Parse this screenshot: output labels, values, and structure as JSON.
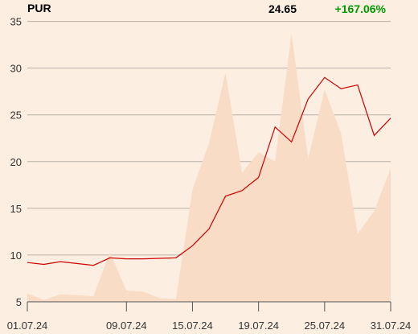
{
  "header": {
    "symbol": "PUR",
    "last_price": "24.65",
    "change_pct": "+167.06%"
  },
  "colors": {
    "background": "#fcefe2",
    "line": "#cc0000",
    "volume_area": "#f8dcc6",
    "grid": "#b8b0a8",
    "change_positive": "#009900"
  },
  "chart_data": {
    "type": "line",
    "title": "",
    "xlabel": "",
    "ylabel": "",
    "x_tick_labels": [
      "01.07.24",
      "09.07.24",
      "15.07.24",
      "19.07.24",
      "25.07.24",
      "31.07.24"
    ],
    "y_ticks": [
      5,
      10,
      15,
      20,
      25,
      30,
      35
    ],
    "ylim": [
      5,
      36
    ],
    "grid": "horizontal",
    "series": [
      {
        "role": "price",
        "values": [
          9.2,
          9.0,
          9.3,
          9.1,
          8.9,
          9.7,
          9.6,
          9.6,
          9.65,
          9.7,
          11.0,
          12.8,
          16.3,
          16.9,
          18.3,
          23.7,
          22.1,
          26.7,
          29.0,
          27.8,
          28.2,
          22.8,
          24.65
        ]
      },
      {
        "role": "volume",
        "values": [
          5.9,
          5.2,
          5.8,
          5.7,
          5.6,
          10.3,
          6.2,
          6.1,
          5.4,
          5.3,
          17.0,
          22.0,
          29.5,
          18.8,
          21.0,
          20.0,
          33.7,
          20.3,
          27.7,
          23.0,
          12.3,
          14.7,
          19.3
        ]
      }
    ]
  }
}
